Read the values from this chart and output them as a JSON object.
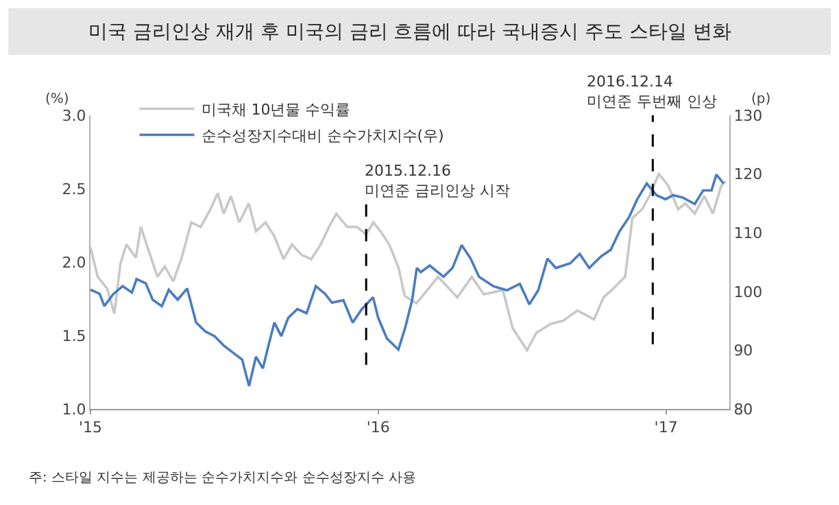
{
  "chart_data": {
    "type": "line",
    "title": "미국 금리인상 재개 후 미국의 금리 흐름에 따라 국내증시 주도 스타일 변화",
    "ylabel": "(%)",
    "y2label": "(p)",
    "xlim": [
      2015,
      2017.22
    ],
    "xticks": [
      {
        "value": 2015,
        "label": "'15"
      },
      {
        "value": 2016,
        "label": "'16"
      },
      {
        "value": 2017,
        "label": "'17"
      }
    ],
    "ylim": [
      1.0,
      3.0
    ],
    "yticks": [
      {
        "value": 1,
        "label": "1.0"
      },
      1.5,
      {
        "value": 2,
        "label": "2.0"
      },
      2.5,
      {
        "value": 3,
        "label": "3.0"
      }
    ],
    "y2lim": [
      80,
      130
    ],
    "y2ticks": [
      80,
      90,
      100,
      110,
      120,
      130
    ],
    "grid": false,
    "legend": "top left",
    "marker": "none",
    "line_style": "solid",
    "series": [
      {
        "name": "미국채 10년물 수익률",
        "color": "#c8c8c8",
        "x": [
          2015.0,
          2015.025,
          2015.058,
          2015.083,
          2015.104,
          2015.125,
          2015.158,
          2015.175,
          2015.2,
          2015.233,
          2015.258,
          2015.288,
          2015.317,
          2015.35,
          2015.383,
          2015.417,
          2015.442,
          2015.463,
          2015.488,
          2015.517,
          2015.55,
          2015.575,
          2015.608,
          2015.638,
          2015.671,
          2015.7,
          2015.733,
          2015.767,
          2015.8,
          2015.829,
          2015.854,
          2015.892,
          2015.925,
          2015.958,
          2015.983,
          2016.008,
          2016.038,
          2016.071,
          2016.092,
          2016.133,
          2016.208,
          2016.275,
          2016.325,
          2016.367,
          2016.433,
          2016.467,
          2016.517,
          2016.55,
          2016.6,
          2016.642,
          2016.692,
          2016.75,
          2016.783,
          2016.817,
          2016.858,
          2016.883,
          2016.917,
          2016.942,
          2016.975,
          2017.008,
          2017.042,
          2017.067,
          2017.1,
          2017.133,
          2017.163,
          2017.192,
          2017.208
        ],
        "values": [
          2.1,
          1.9,
          1.82,
          1.65,
          1.99,
          2.12,
          2.03,
          2.24,
          2.09,
          1.9,
          1.97,
          1.87,
          2.03,
          2.27,
          2.24,
          2.36,
          2.47,
          2.33,
          2.45,
          2.27,
          2.4,
          2.21,
          2.27,
          2.18,
          2.02,
          2.12,
          2.05,
          2.02,
          2.12,
          2.24,
          2.33,
          2.24,
          2.24,
          2.19,
          2.27,
          2.21,
          2.12,
          1.96,
          1.77,
          1.72,
          1.9,
          1.76,
          1.9,
          1.78,
          1.81,
          1.55,
          1.4,
          1.52,
          1.58,
          1.6,
          1.67,
          1.61,
          1.76,
          1.82,
          1.9,
          2.3,
          2.36,
          2.45,
          2.6,
          2.52,
          2.36,
          2.4,
          2.33,
          2.45,
          2.33,
          2.52,
          2.55
        ]
      },
      {
        "name": "순수성장지수대비 순수가치지수(우)",
        "color": "#4a7cc0",
        "axis": "y2",
        "x": [
          2015.0,
          2015.032,
          2015.048,
          2015.08,
          2015.112,
          2015.144,
          2015.16,
          2015.192,
          2015.216,
          2015.248,
          2015.272,
          2015.303,
          2015.336,
          2015.367,
          2015.399,
          2015.431,
          2015.463,
          2015.495,
          2015.527,
          2015.551,
          2015.575,
          2015.599,
          2015.615,
          2015.639,
          2015.663,
          2015.687,
          2015.719,
          2015.751,
          2015.783,
          2015.815,
          2015.839,
          2015.879,
          2015.911,
          2015.943,
          2015.982,
          2016.0,
          2016.03,
          2016.07,
          2016.094,
          2016.118,
          2016.134,
          2016.148,
          2016.179,
          2016.227,
          2016.258,
          2016.29,
          2016.321,
          2016.35,
          2016.4,
          2016.447,
          2016.492,
          2016.525,
          2016.556,
          2016.588,
          2016.617,
          2016.667,
          2016.7,
          2016.733,
          2016.775,
          2016.808,
          2016.838,
          2016.871,
          2016.9,
          2016.933,
          2016.967,
          2016.998,
          2017.025,
          2017.058,
          2017.1,
          2017.129,
          2017.158,
          2017.175,
          2017.2
        ],
        "values": [
          100.3,
          99.6,
          97.5,
          99.6,
          100.9,
          99.8,
          102.1,
          101.4,
          98.6,
          97.5,
          100.3,
          98.6,
          100.5,
          94.7,
          93.2,
          92.4,
          90.8,
          89.6,
          88.4,
          83.9,
          88.9,
          86.9,
          90.1,
          94.7,
          92.4,
          95.5,
          97.0,
          96.3,
          100.9,
          99.6,
          98.1,
          98.5,
          94.7,
          97.0,
          99.0,
          95.5,
          92.0,
          90.1,
          93.9,
          98.6,
          104.0,
          103.3,
          104.4,
          102.5,
          104.0,
          107.9,
          105.6,
          102.5,
          100.9,
          100.2,
          101.3,
          97.8,
          100.2,
          105.6,
          104.0,
          104.8,
          106.4,
          104.0,
          106.0,
          107.1,
          110.2,
          112.6,
          115.7,
          118.4,
          116.4,
          115.7,
          116.4,
          116.0,
          114.9,
          117.2,
          117.2,
          119.9,
          118.4
        ]
      }
    ],
    "ref_lines": [
      {
        "axis": "x",
        "value": 2015.958,
        "label": "2015.12.16\n미연준 금리인상 시작",
        "color": "#000000",
        "line_style": "dashed"
      },
      {
        "axis": "x",
        "value": 2016.954,
        "label": "2016.12.14\n미연준 두번째 인상",
        "color": "#000000",
        "line_style": "dashed"
      }
    ],
    "annotations": [
      "주: 스타일 지수는 제공하는 순수가치지수와 순수성장지수 사용"
    ]
  }
}
